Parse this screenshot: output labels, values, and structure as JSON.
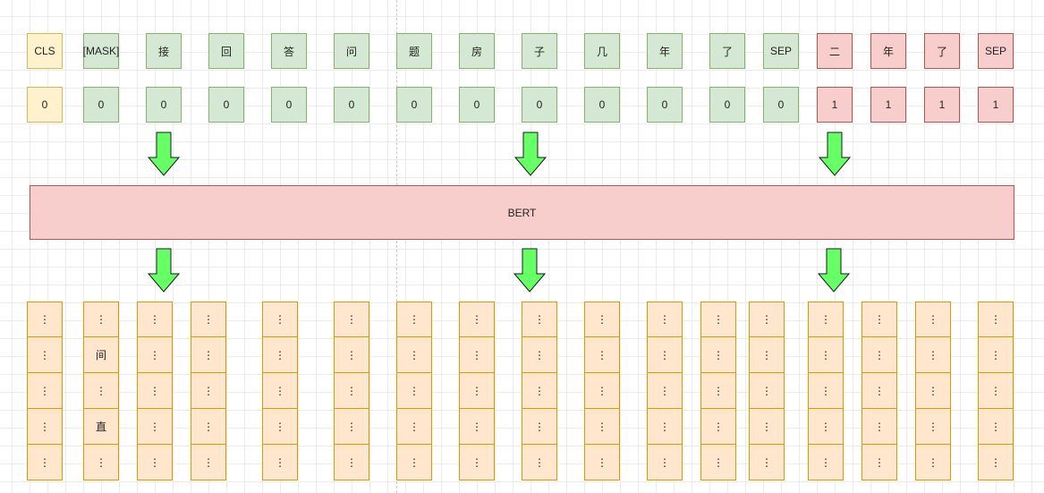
{
  "tokens": [
    "CLS",
    "[MASK]",
    "接",
    "回",
    "答",
    "问",
    "题",
    "房",
    "子",
    "几",
    "年",
    "了",
    "SEP",
    "二",
    "年",
    "了",
    "SEP"
  ],
  "segments": [
    "0",
    "0",
    "0",
    "0",
    "0",
    "0",
    "0",
    "0",
    "0",
    "0",
    "0",
    "0",
    "0",
    "1",
    "1",
    "1",
    "1"
  ],
  "model_label": "BERT",
  "output_default": "⋮",
  "output_special": {
    "mid": "间",
    "low": "直"
  },
  "colors": {
    "cls_fill": "#fff2cc",
    "cls_stroke": "#d6b656",
    "seg_a_fill": "#d5e8d4",
    "seg_a_stroke": "#82b366",
    "seg_b_fill": "#f8cecc",
    "seg_b_stroke": "#b85450",
    "output_fill": "#ffe6cc",
    "output_stroke": "#d79b00",
    "arrow_fill": "#66ff66"
  }
}
